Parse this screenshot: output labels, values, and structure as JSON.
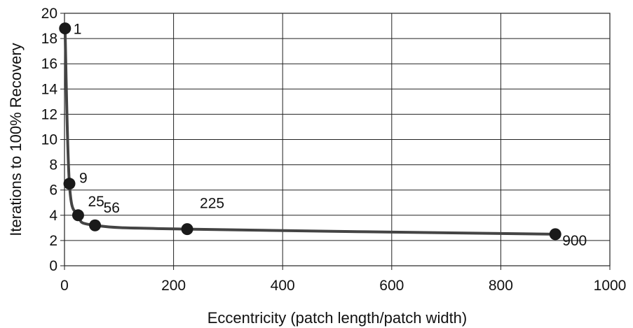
{
  "chart_data": {
    "type": "line",
    "title": "",
    "xlabel": "Eccentricity (patch length/patch width)",
    "ylabel": "Iterations to 100% Recovery",
    "xlim": [
      0,
      1000
    ],
    "ylim": [
      0,
      20
    ],
    "xticks": [
      0,
      200,
      400,
      600,
      800,
      1000
    ],
    "yticks": [
      0,
      2,
      4,
      6,
      8,
      10,
      12,
      14,
      16,
      18,
      20
    ],
    "grid": true,
    "legend": "none",
    "line_color": "#444444",
    "marker_color": "#1a1a1a",
    "series": [
      {
        "x": [
          1,
          9,
          25,
          56,
          225,
          900
        ],
        "y": [
          18.8,
          6.5,
          4.0,
          3.2,
          2.9,
          2.5
        ],
        "point_labels": [
          "1",
          "9",
          "25",
          "56",
          "225",
          "900"
        ]
      }
    ]
  }
}
